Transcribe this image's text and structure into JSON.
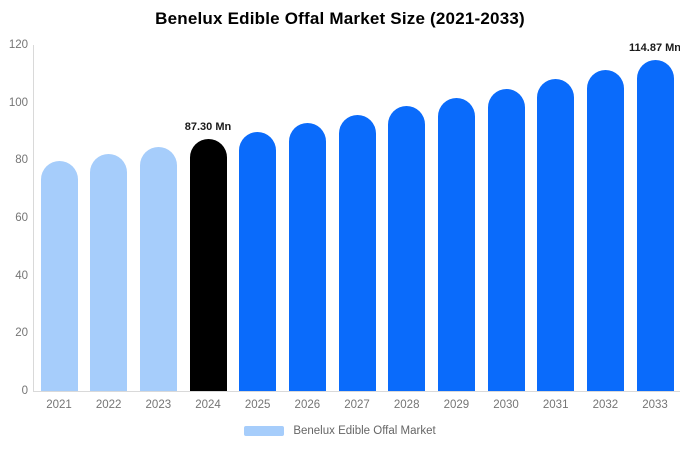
{
  "title": "Benelux Edible Offal Market Size (2021-2033)",
  "legend": {
    "label": "Benelux Edible Offal Market",
    "swatch_color": "#a6cdfb"
  },
  "colors": {
    "historical_bar": "#a6cdfb",
    "base_year_bar": "#000000",
    "forecast_bar": "#0a6bfb",
    "axis_line": "#d9d9d9",
    "tick_label": "#757575",
    "annotation_text": "#1a1a1a",
    "title_text": "#000000",
    "background": "#ffffff"
  },
  "chart_data": {
    "type": "bar",
    "title": "Benelux Edible Offal Market Size (2021-2033)",
    "unit": "Mn",
    "categories": [
      "2021",
      "2022",
      "2023",
      "2024",
      "2025",
      "2026",
      "2027",
      "2028",
      "2029",
      "2030",
      "2031",
      "2032",
      "2033"
    ],
    "series": [
      {
        "name": "Benelux Edible Offal Market",
        "values": [
          79.7,
          82.1,
          84.7,
          87.3,
          90.0,
          92.8,
          95.7,
          98.7,
          101.7,
          104.9,
          108.2,
          111.5,
          114.87
        ]
      }
    ],
    "bar_colors": [
      "#a6cdfb",
      "#a6cdfb",
      "#a6cdfb",
      "#000000",
      "#0a6bfb",
      "#0a6bfb",
      "#0a6bfb",
      "#0a6bfb",
      "#0a6bfb",
      "#0a6bfb",
      "#0a6bfb",
      "#0a6bfb",
      "#0a6bfb"
    ],
    "ylim": [
      0,
      120
    ],
    "yticks": [
      0,
      20,
      40,
      60,
      80,
      100,
      120
    ],
    "grid": false,
    "legend_position": "bottom",
    "annotations": [
      {
        "index": 3,
        "text": "87.30 Mn"
      },
      {
        "index": 12,
        "text": "114.87 Mn"
      }
    ]
  }
}
